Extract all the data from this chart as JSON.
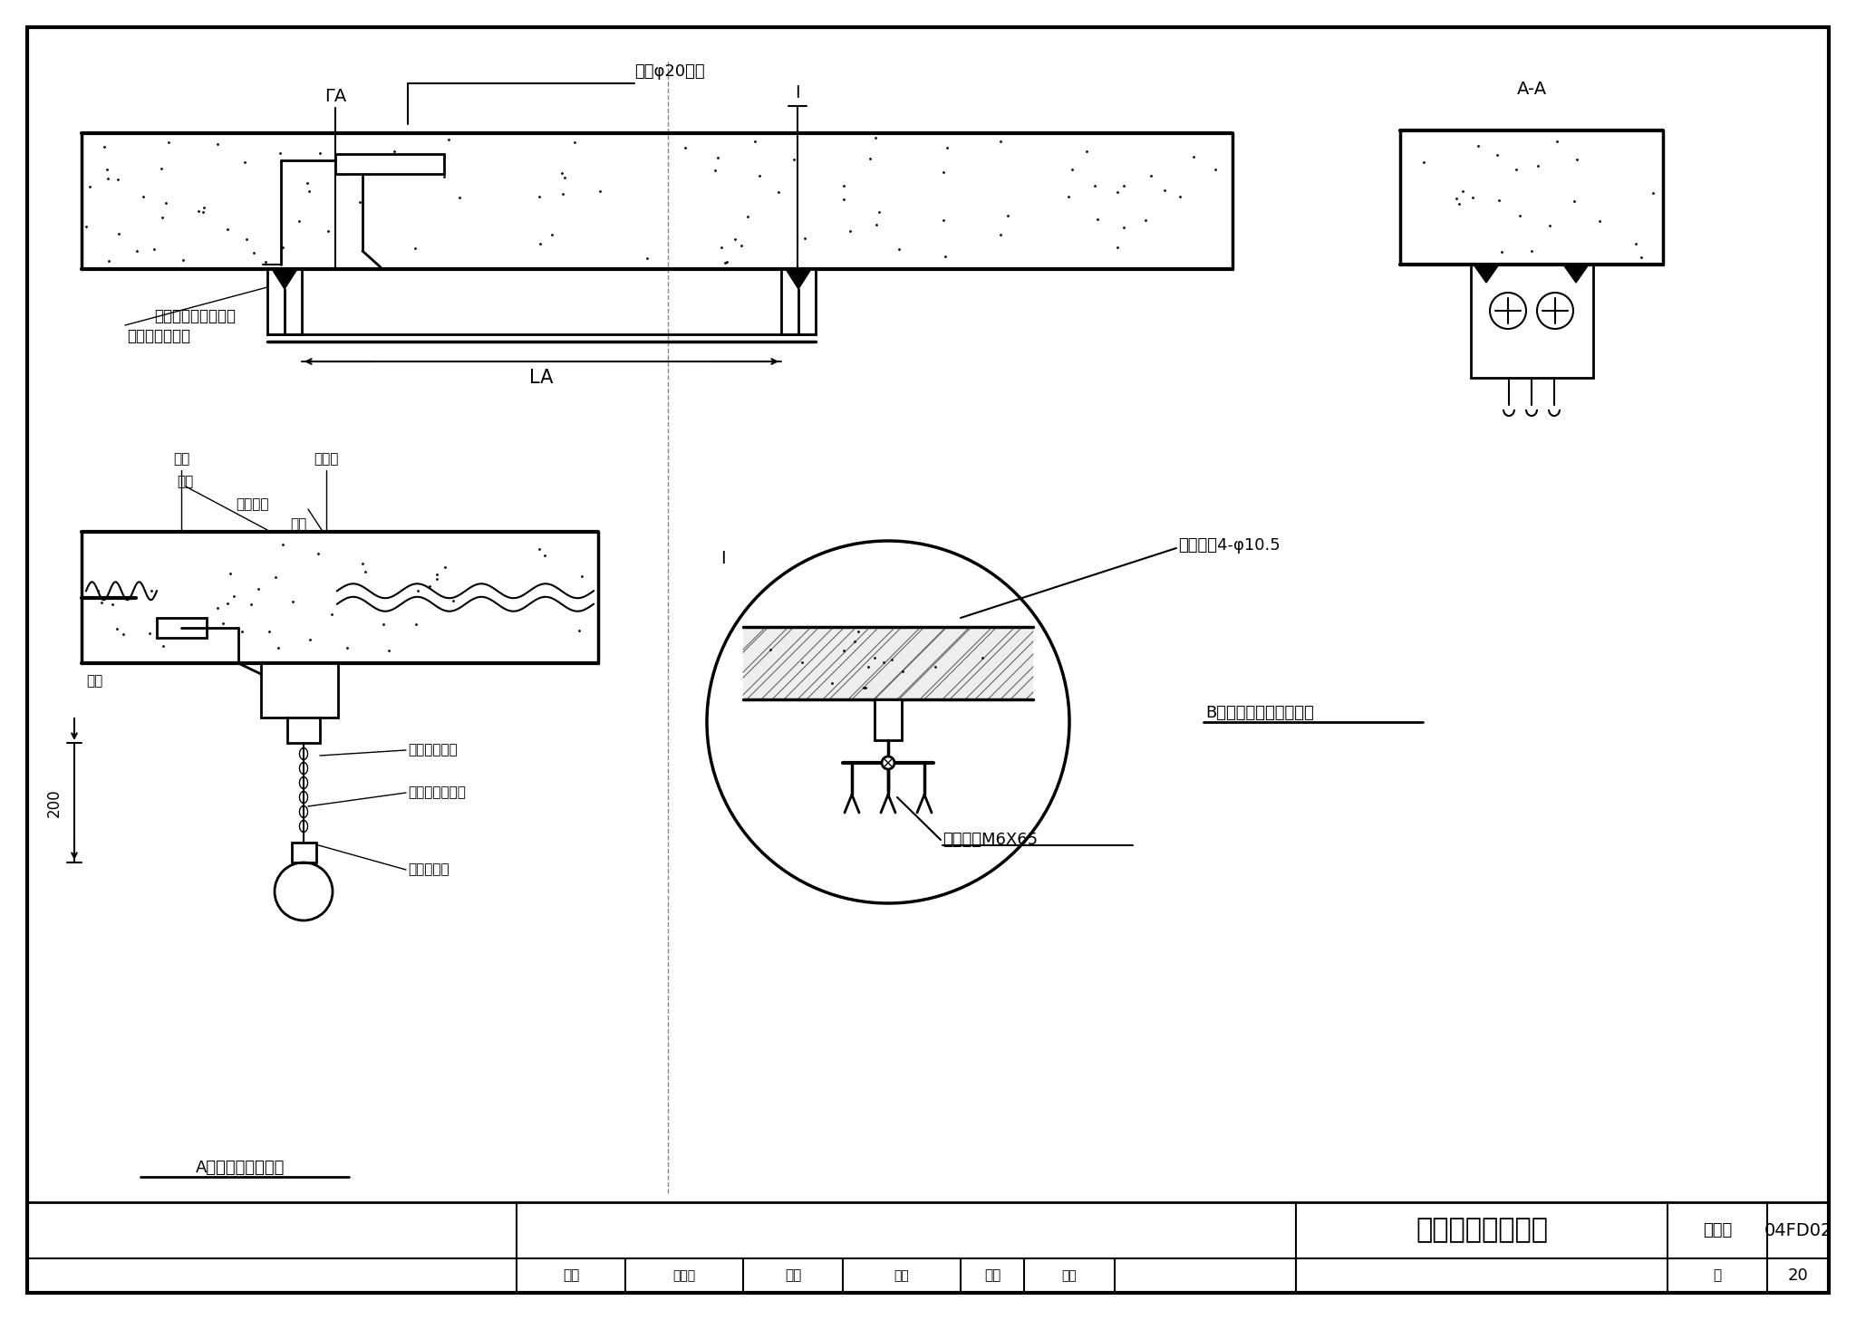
{
  "title": "人防灯具安装做法",
  "figure_number": "04FD02",
  "page": "20",
  "bg_color": "#ffffff",
  "label_A": "A人防吊线灯具安装",
  "label_B": "B人防荧光灯具吸顶安装",
  "text_preburied": "预埋φ20钢管",
  "text_war1": "战时两端用尼龙丝线",
  "text_war2": "与安装螺栓缠绕",
  "text_LA": "LA",
  "text_FA": "ΓA",
  "text_AA": "A-A",
  "text_I": "I",
  "text_guard": "护口",
  "text_lamp_box": "灯头盒",
  "text_nut": "根母",
  "text_ground": "跨接地线",
  "text_weld": "焊接",
  "text_steel_tube": "钢管",
  "text_ceramic_box": "元木白瓷吊盒",
  "text_waterproof": "防水铜芯塑料线",
  "text_ceramic_lamp": "白瓷吊灯口",
  "text_drill": "安装时钻4-φ10.5",
  "text_bolt": "膨胀螺栓M6X65",
  "text_200": "200",
  "review": "审核",
  "reviewer": "杨维迅",
  "check": "校对",
  "checker": "罗浩",
  "design": "设计",
  "designer": "徐迪",
  "atlas_label": "图集号",
  "page_label": "页"
}
